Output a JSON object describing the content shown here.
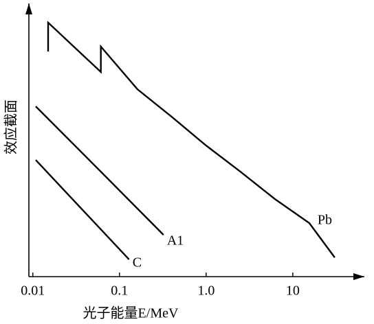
{
  "chart_data": {
    "type": "line",
    "xlabel": "光子能量E/MeV",
    "ylabel": "效应截面",
    "xscale": "log",
    "xlim": [
      0.009,
      67
    ],
    "ylim": [
      0,
      100
    ],
    "xticks": [
      0.01,
      0.1,
      {
        "value": 1,
        "label": "1.0"
      },
      10
    ],
    "color": "#000000",
    "series": [
      {
        "name": "Pb",
        "x": [
          0.015,
          0.015,
          0.061,
          0.061,
          0.161,
          0.401,
          1.0,
          2.49,
          6.22,
          15.5,
          30.5
        ],
        "values": [
          82.4,
          93.0,
          74.9,
          84.2,
          68.6,
          58.5,
          48.0,
          38.4,
          28.4,
          19.6,
          7.0
        ]
      },
      {
        "name": "A1",
        "x": [
          0.0108,
          0.0589,
          0.322
        ],
        "values": [
          62.3,
          38.9,
          15.3
        ]
      },
      {
        "name": "C",
        "x": [
          0.0108,
          0.129
        ],
        "values": [
          42.7,
          6.3
        ]
      }
    ]
  }
}
